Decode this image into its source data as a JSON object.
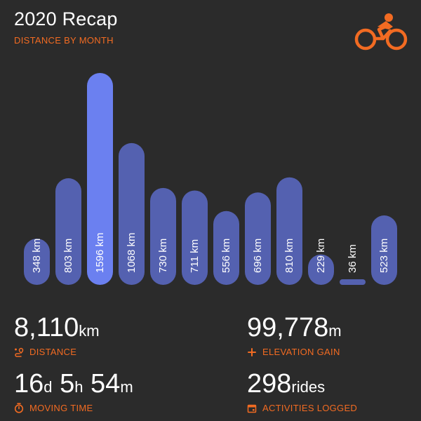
{
  "header": {
    "title": "2020 Recap",
    "subtitle": "DISTANCE BY MONTH"
  },
  "icons": {
    "brand": "cyclist-icon",
    "distance": "route-pin-icon",
    "elevation": "plus-icon",
    "time": "stopwatch-icon",
    "activities": "calendar-icon"
  },
  "colors": {
    "background": "#2b2b2b",
    "accent": "#f26b22",
    "bar": "#5461b0",
    "bar_max": "#6b80f0",
    "text": "#ffffff"
  },
  "chart_data": {
    "type": "bar",
    "categories": [
      "",
      "",
      "",
      "",
      "",
      "",
      "",
      "",
      "",
      "",
      "",
      ""
    ],
    "values": [
      348,
      803,
      1596,
      1068,
      730,
      711,
      556,
      696,
      810,
      229,
      36,
      523
    ],
    "value_labels": [
      "348 km",
      "803 km",
      "1596 km",
      "1068 km",
      "730 km",
      "711 km",
      "556 km",
      "696 km",
      "810 km",
      "229 km",
      "36 km",
      "523 km"
    ],
    "title": "",
    "xlabel": "",
    "ylabel": "",
    "ylim": [
      0,
      1596
    ],
    "grid": false,
    "legend": "none"
  },
  "stats": {
    "distance": {
      "value": "8,110",
      "unit": "km",
      "label": "DISTANCE"
    },
    "elevation": {
      "value": "99,778",
      "unit": "m",
      "label": "ELEVATION GAIN"
    },
    "moving_time": {
      "days": "16",
      "days_unit": "d",
      "hours": "5",
      "hours_unit": "h",
      "minutes": "54",
      "minutes_unit": "m",
      "label": "MOVING TIME"
    },
    "activities": {
      "value": "298",
      "unit": "rides",
      "label": "ACTIVITIES LOGGED"
    }
  }
}
